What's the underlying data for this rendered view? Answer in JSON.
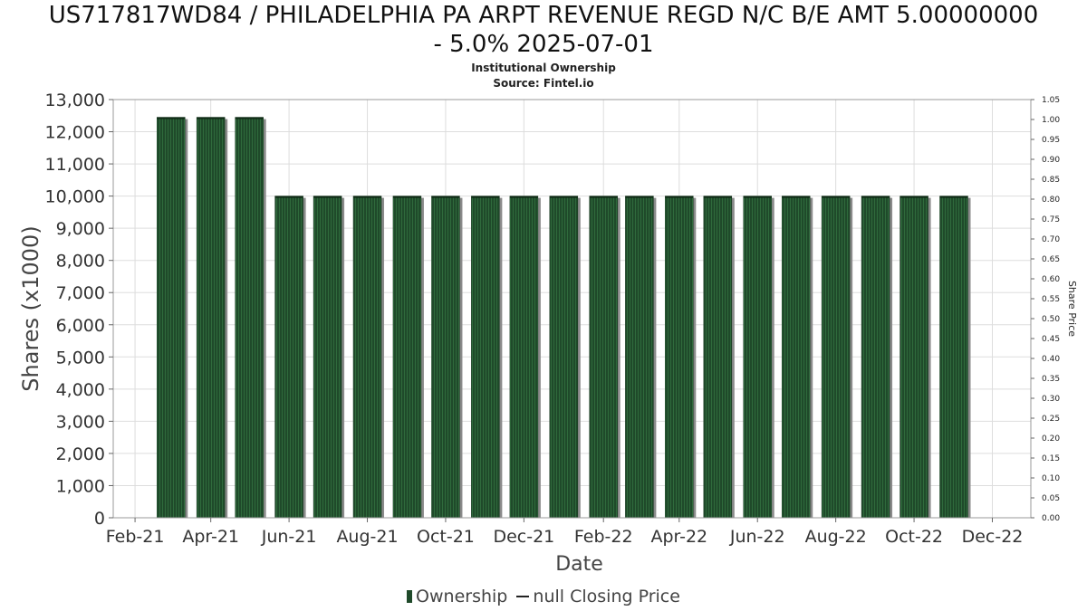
{
  "chart_data": {
    "type": "bar",
    "title": "US717817WD84 / PHILADELPHIA PA ARPT REVENUE REGD N/C B/E AMT 5.00000000",
    "title_line2": "- 5.0% 2025-07-01",
    "subtitle": "Institutional Ownership",
    "subtitle2": "Source: Fintel.io",
    "xlabel": "Date",
    "ylabel": "Shares (x1000)",
    "y2label": "Share Price",
    "ylim": [
      0,
      13000
    ],
    "y2lim": [
      0,
      1.05
    ],
    "y_ticks": [
      "0",
      "1,000",
      "2,000",
      "3,000",
      "4,000",
      "5,000",
      "6,000",
      "7,000",
      "8,000",
      "9,000",
      "10,000",
      "11,000",
      "12,000",
      "13,000"
    ],
    "y2_ticks": [
      "0.00",
      "0.05",
      "0.10",
      "0.15",
      "0.20",
      "0.25",
      "0.30",
      "0.35",
      "0.40",
      "0.45",
      "0.50",
      "0.55",
      "0.60",
      "0.65",
      "0.70",
      "0.75",
      "0.80",
      "0.85",
      "0.90",
      "0.95",
      "1.00",
      "1.05"
    ],
    "x_ticks": [
      "Feb-21",
      "Apr-21",
      "Jun-21",
      "Aug-21",
      "Oct-21",
      "Dec-21",
      "Feb-22",
      "Apr-22",
      "Jun-22",
      "Aug-22",
      "Oct-22",
      "Dec-22"
    ],
    "grid": true,
    "legend_position": "bottom",
    "series": [
      {
        "name": "Ownership",
        "color": "#1f4a2a",
        "x": [
          "2021-03-01",
          "2021-04-01",
          "2021-05-01",
          "2021-06-01",
          "2021-07-01",
          "2021-08-01",
          "2021-09-01",
          "2021-10-01",
          "2021-11-01",
          "2021-12-01",
          "2022-01-01",
          "2022-02-01",
          "2022-03-01",
          "2022-04-01",
          "2022-05-01",
          "2022-06-01",
          "2022-07-01",
          "2022-08-01",
          "2022-09-01",
          "2022-10-01",
          "2022-11-01"
        ],
        "values": [
          12450,
          12450,
          12450,
          10000,
          10000,
          10000,
          10000,
          10000,
          10000,
          10000,
          10000,
          10000,
          10000,
          10000,
          10000,
          10000,
          10000,
          10000,
          10000,
          10000,
          10000
        ]
      },
      {
        "name": "null Closing Price",
        "color": "#222222",
        "values": []
      }
    ]
  }
}
